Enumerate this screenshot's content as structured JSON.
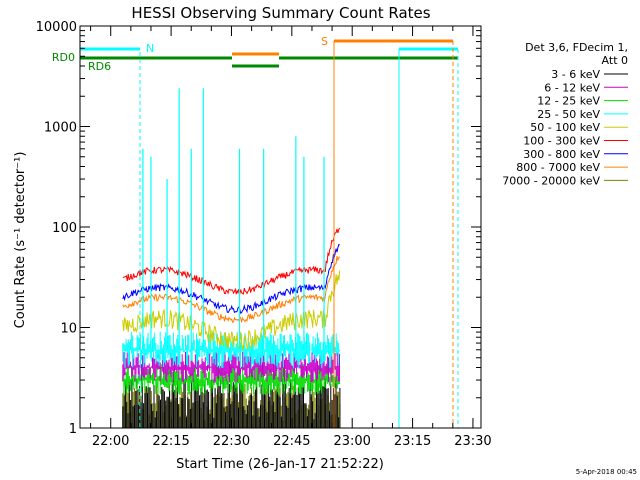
{
  "chart_data": {
    "type": "line",
    "title": "HESSI Observing Summary Count Rates",
    "xlabel": "Start Time (26-Jan-17 21:52:22)",
    "ylabel": "Count Rate (s⁻¹ detector⁻¹)",
    "ylog": true,
    "ylim": [
      1,
      10000
    ],
    "xlim": [
      "21:52:22",
      "23:32:00"
    ],
    "x_ticks": [
      "22:00",
      "22:15",
      "22:30",
      "22:45",
      "23:00",
      "23:15",
      "23:30"
    ],
    "y_ticks": [
      "1",
      "10",
      "100",
      "1000",
      "10000"
    ],
    "grid": false,
    "legend_position": "right",
    "legend_header": [
      "Det 3,6, FDecim 1,",
      "Att 0"
    ],
    "footer_date": "5-Apr-2018 00:45",
    "data_window": {
      "start": "22:03",
      "end": "22:57"
    },
    "series": [
      {
        "name": "3 - 6 keV",
        "color": "#000000",
        "level": 1.6
      },
      {
        "name": "6 - 12 keV",
        "color": "#cc00cc",
        "level": 4.0
      },
      {
        "name": "12 - 25 keV",
        "color": "#00dd00",
        "level": 3.0
      },
      {
        "name": "25 - 50 keV",
        "color": "#00ffff",
        "level": 6.0
      },
      {
        "name": "50 - 100 keV",
        "color": "#cccc00",
        "level": 10
      },
      {
        "name": "100 - 300 keV",
        "color": "#ff0000",
        "level": 30
      },
      {
        "name": "300 - 800 keV",
        "color": "#0000ff",
        "level": 20
      },
      {
        "name": "800 - 7000 keV",
        "color": "#ff8000",
        "level": 16
      },
      {
        "name": "7000 - 20000 keV",
        "color": "#808000",
        "level": 1.5
      }
    ],
    "spikes": [
      {
        "t": "22:08",
        "value": 600
      },
      {
        "t": "22:10",
        "value": 500
      },
      {
        "t": "22:14",
        "value": 300
      },
      {
        "t": "22:17",
        "value": 2400
      },
      {
        "t": "22:20",
        "value": 600
      },
      {
        "t": "22:23",
        "value": 2400
      },
      {
        "t": "22:32",
        "value": 600
      },
      {
        "t": "22:38",
        "value": 600
      },
      {
        "t": "22:46",
        "value": 800
      },
      {
        "t": "22:48",
        "value": 500
      },
      {
        "t": "22:53",
        "value": 500
      }
    ],
    "flags": [
      {
        "label": "RD0",
        "color": "#008800"
      },
      {
        "label": "RD6",
        "color": "#008800"
      },
      {
        "label": "N",
        "color": "#00ffff"
      },
      {
        "label": "S",
        "color": "#ff8000"
      }
    ]
  }
}
